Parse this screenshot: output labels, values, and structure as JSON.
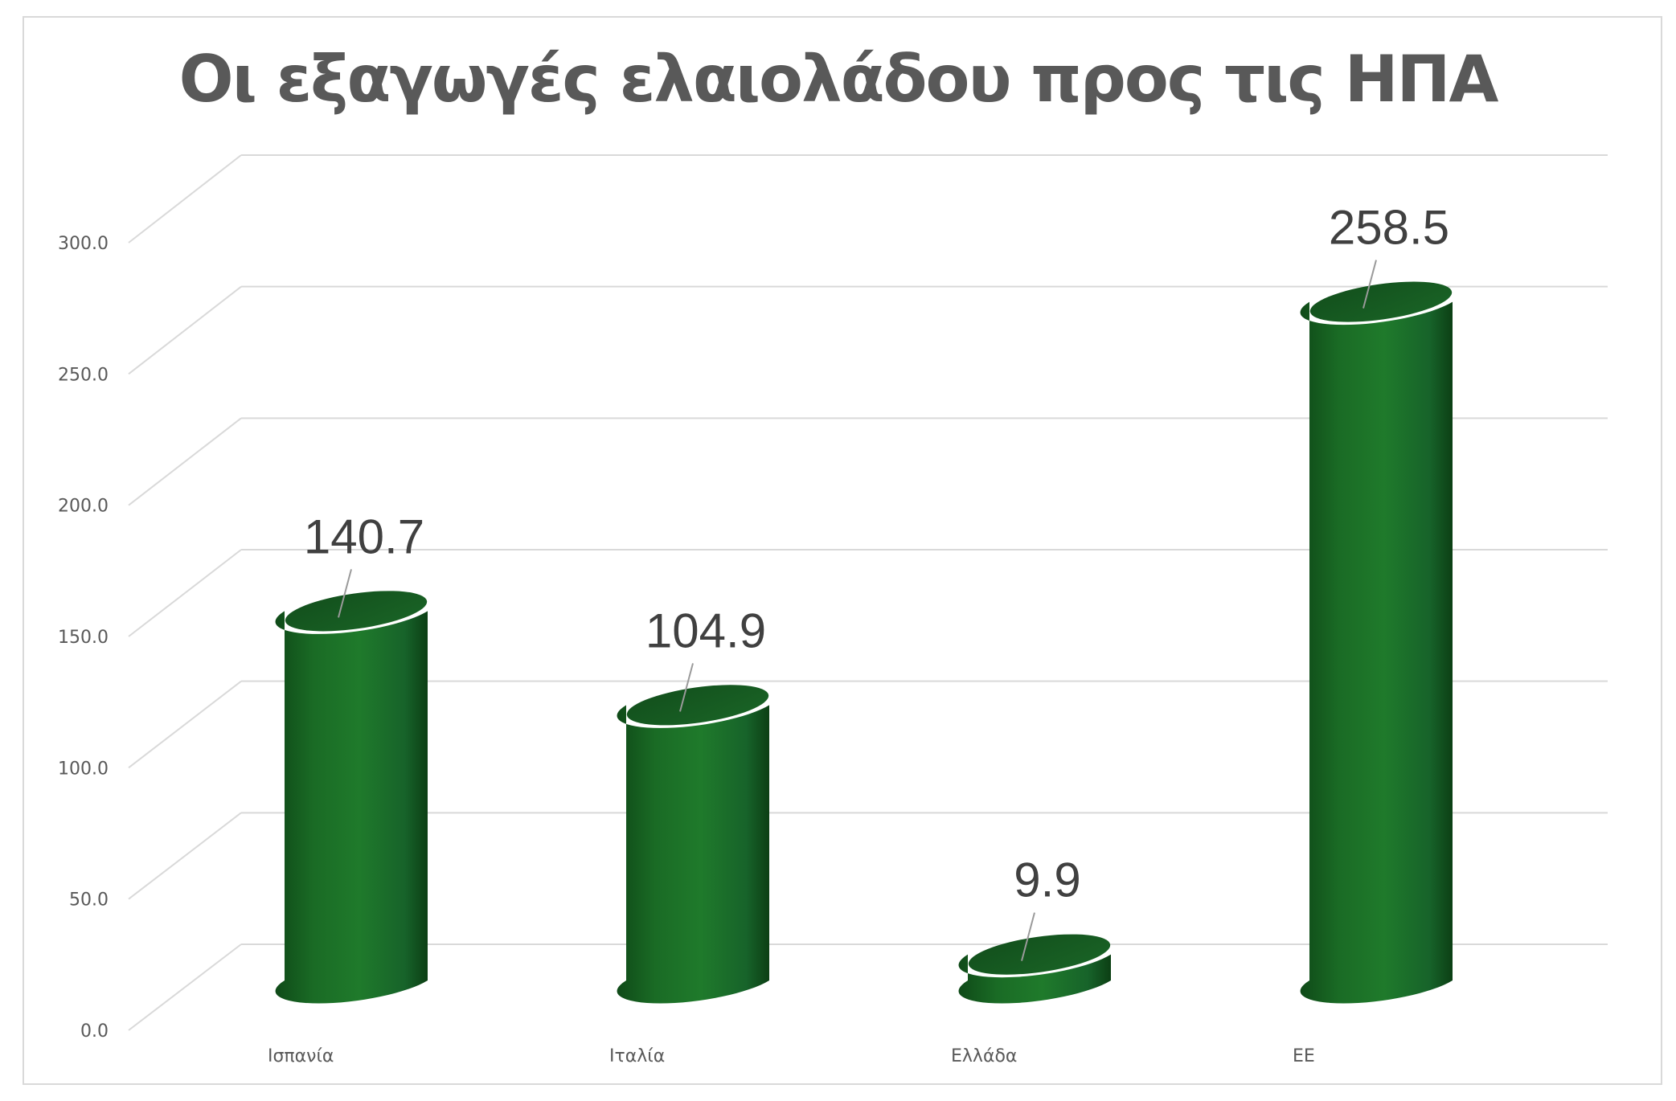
{
  "chart_data": {
    "type": "bar",
    "title": "Οι εξαγωγές ελαιολάδου προς τις ΗΠΑ",
    "xlabel": "",
    "ylabel": "",
    "categories": [
      "Ισπανία",
      "Ιταλία",
      "Ελλάδα",
      "ΕΕ"
    ],
    "values": [
      140.7,
      104.9,
      9.9,
      258.5
    ],
    "data_labels": [
      "140.7",
      "104.9",
      "9.9",
      "258.5"
    ],
    "ylim": [
      0,
      300
    ],
    "yticks": [
      0,
      50,
      100,
      150,
      200,
      250,
      300
    ],
    "ytick_labels": [
      "0.0",
      "50.0",
      "100.0",
      "150.0",
      "200.0",
      "250.0",
      "300.0"
    ],
    "grid": true,
    "legend": "none",
    "style": "3d-cylinder",
    "colors": {
      "bar_light": "#1f7a2b",
      "bar_mid": "#1a6b25",
      "bar_dark": "#0f4a18",
      "bar_top": "#145a1f",
      "grid": "#d9d9d9",
      "label_text": "#404040",
      "axis_text": "#595959"
    }
  }
}
